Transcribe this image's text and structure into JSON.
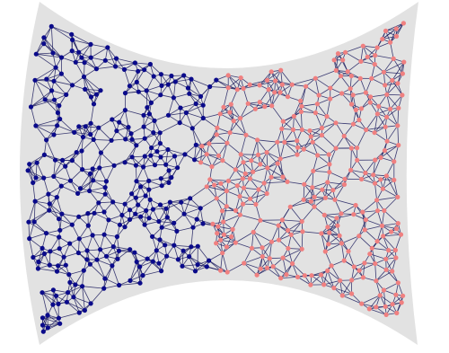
{
  "graph": {
    "region_color": "#e2e2e2",
    "edge_color": "#1c1c5e",
    "partitions": [
      {
        "name": "left-partition",
        "color": "#0a0a8a"
      },
      {
        "name": "right-partition",
        "color": "#f08080"
      }
    ],
    "approx_node_count": 600
  }
}
